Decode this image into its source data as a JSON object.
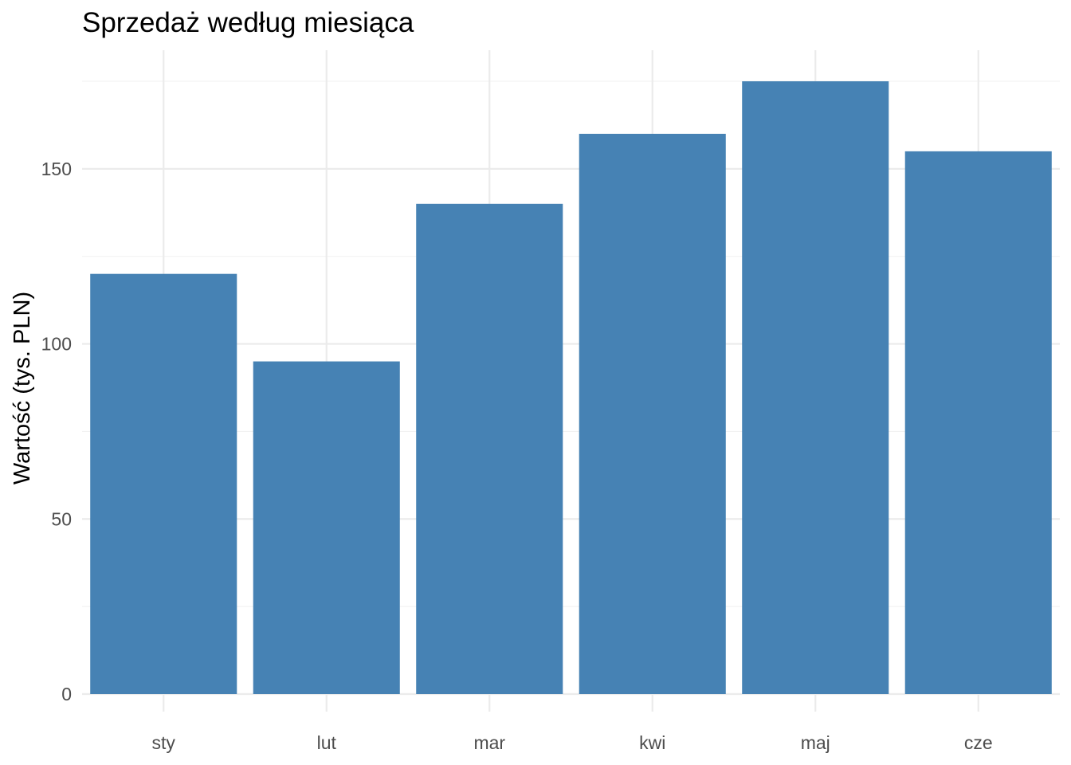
{
  "chart_data": {
    "type": "bar",
    "title": "Sprzedaż według miesiąca",
    "xlabel": "",
    "ylabel": "Wartość (tys. PLN)",
    "categories": [
      "sty",
      "lut",
      "mar",
      "kwi",
      "maj",
      "cze"
    ],
    "values": [
      120,
      95,
      140,
      160,
      175,
      155
    ],
    "ylim": [
      0,
      175
    ],
    "yticks": [
      0,
      50,
      100,
      150
    ],
    "yminor": [
      25,
      75,
      125,
      175
    ],
    "grid": true,
    "legend": "none",
    "bar_color": "#4682B4"
  }
}
